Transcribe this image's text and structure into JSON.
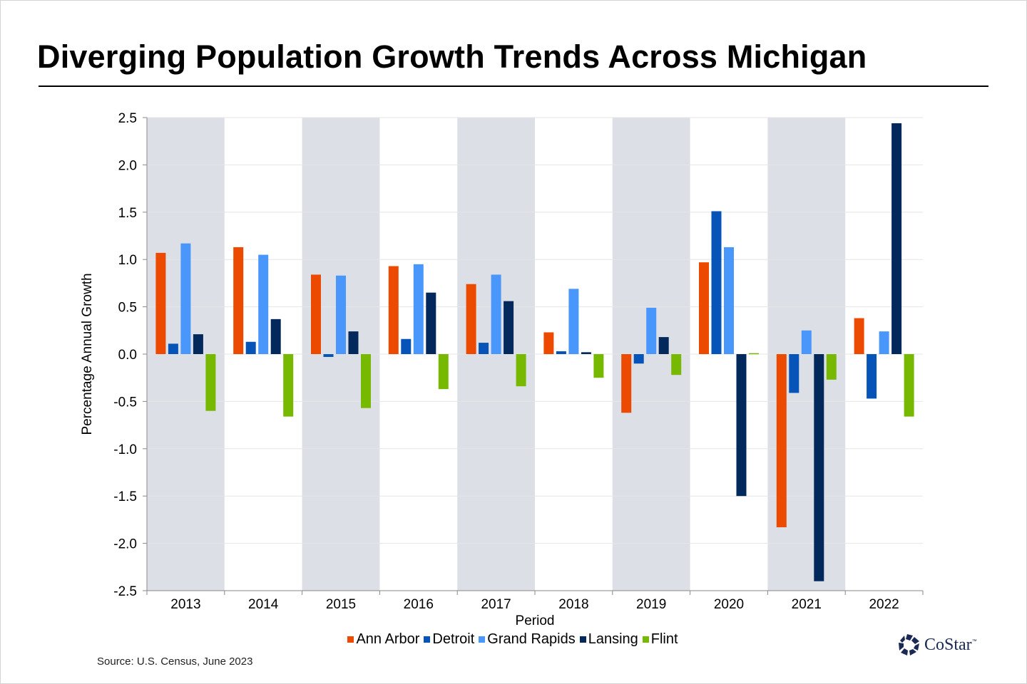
{
  "page": {
    "title": "Diverging Population Growth Trends Across Michigan",
    "source": "Source: U.S. Census, June 2023",
    "logo": {
      "name": "CoStar",
      "trademark": "™",
      "color": "#1b2a55"
    }
  },
  "colors": {
    "band": "#dcdfe6",
    "grid": "#e6e6e6",
    "axis": "#888888"
  },
  "chart_data": {
    "type": "bar",
    "title": "Diverging Population Growth Trends Across Michigan",
    "xlabel": "Period",
    "ylabel": "Percentage Annual Growth",
    "ylim": [
      -2.5,
      2.5
    ],
    "yticks": [
      "2.5",
      "2.0",
      "1.5",
      "1.0",
      "0.5",
      "0.0",
      "-0.5",
      "-1.0",
      "-1.5",
      "-2.0",
      "-2.5"
    ],
    "ytick_values": [
      2.5,
      2.0,
      1.5,
      1.0,
      0.5,
      0.0,
      -0.5,
      -1.0,
      -1.5,
      -2.0,
      -2.5
    ],
    "grid": true,
    "alternating_bands": true,
    "legend_position": "bottom",
    "categories": [
      "2013",
      "2014",
      "2015",
      "2016",
      "2017",
      "2018",
      "2019",
      "2020",
      "2021",
      "2022"
    ],
    "series": [
      {
        "name": "Ann Arbor",
        "color": "#ec4a00",
        "values": [
          1.07,
          1.13,
          0.84,
          0.93,
          0.74,
          0.23,
          -0.62,
          0.97,
          -1.83,
          0.38
        ]
      },
      {
        "name": "Detroit",
        "color": "#0654b8",
        "values": [
          0.11,
          0.13,
          -0.03,
          0.16,
          0.12,
          0.03,
          -0.1,
          1.51,
          -0.41,
          -0.47
        ]
      },
      {
        "name": "Grand Rapids",
        "color": "#4a97fb",
        "values": [
          1.17,
          1.05,
          0.83,
          0.95,
          0.84,
          0.69,
          0.49,
          1.13,
          0.25,
          0.24
        ]
      },
      {
        "name": "Lansing",
        "color": "#03285c",
        "values": [
          0.21,
          0.37,
          0.24,
          0.65,
          0.56,
          0.02,
          0.18,
          -1.5,
          -2.4,
          2.44
        ]
      },
      {
        "name": "Flint",
        "color": "#77b900",
        "values": [
          -0.6,
          -0.66,
          -0.57,
          -0.37,
          -0.34,
          -0.25,
          -0.22,
          0.01,
          -0.27,
          -0.66
        ]
      }
    ]
  }
}
